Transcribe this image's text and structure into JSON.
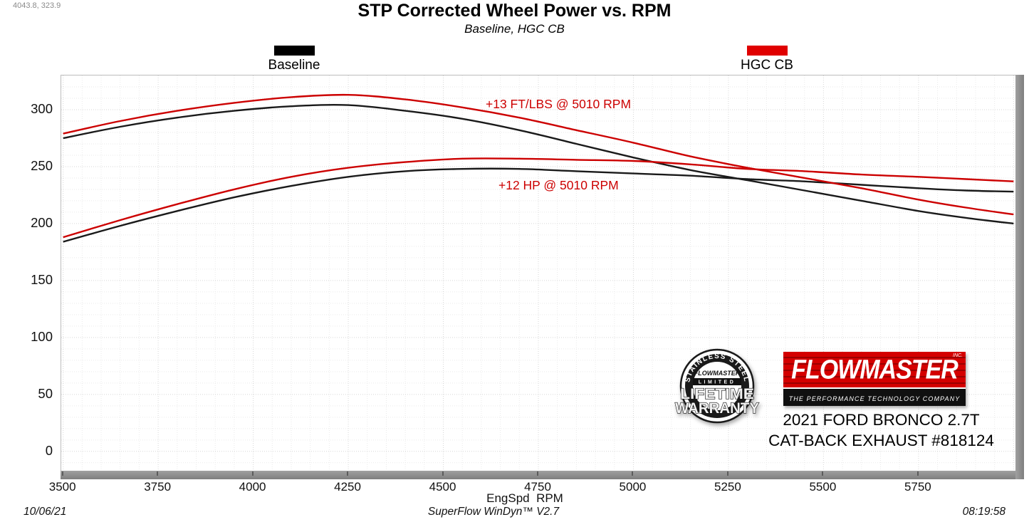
{
  "cursor_readout": "4043.8, 323.9",
  "title": "STP Corrected Wheel Power vs. RPM",
  "subtitle": "Baseline, HGC CB",
  "legend": [
    {
      "label": "Baseline",
      "color": "#000000"
    },
    {
      "label": "HGC CB",
      "color": "#e00000"
    }
  ],
  "branding": {
    "badge": {
      "arc_text": "STAINLESS STEEL",
      "brand": "FLOWMASTER",
      "limited": "LIMITED",
      "line1": "LIFETIME",
      "line2": "WARRANTY"
    },
    "logo": {
      "brand": "FLOWMASTER",
      "inc": "INC.",
      "tagline": "THE PERFORMANCE TECHNOLOGY COMPANY"
    },
    "vehicle_line1": "2021 FORD BRONCO 2.7T",
    "vehicle_line2": "CAT-BACK EXHAUST #818124"
  },
  "footer": {
    "date": "10/06/21",
    "app": "SuperFlow WinDyn™ V2.7",
    "time": "08:19:58"
  },
  "chart_data": {
    "type": "line",
    "title": "STP Corrected Wheel Power vs. RPM",
    "subtitle": "Baseline, HGC CB",
    "xlabel": "EngSpd  RPM",
    "ylabel": "",
    "xlim": [
      3495,
      6005
    ],
    "ylim": [
      -17,
      330
    ],
    "x_ticks": [
      3500,
      3750,
      4000,
      4250,
      4500,
      4750,
      5000,
      5250,
      5500,
      5750
    ],
    "y_ticks": [
      0,
      50,
      100,
      150,
      200,
      250,
      300
    ],
    "grid": {
      "minor_x_step": 50,
      "minor_y_step": 10,
      "style": "dotted"
    },
    "legend_position": "top",
    "x": [
      3500,
      3650,
      3800,
      3950,
      4100,
      4250,
      4400,
      4550,
      4700,
      4850,
      5000,
      5150,
      5300,
      5450,
      5600,
      5750,
      5875,
      6000
    ],
    "series": [
      {
        "name": "Baseline torque (ft-lbs)",
        "color": "#1a1a1a",
        "values": [
          275,
          285,
          293,
          299,
          303,
          304,
          299,
          292,
          282,
          270,
          258,
          247,
          238,
          229,
          220,
          211,
          205,
          200
        ]
      },
      {
        "name": "Baseline power (hp)",
        "color": "#1a1a1a",
        "values": [
          184,
          198,
          211,
          223,
          233,
          241,
          246,
          248,
          248,
          246,
          244,
          242,
          239,
          237,
          234,
          231,
          229,
          228
        ]
      },
      {
        "name": "HGC CB torque (ft-lbs)",
        "color": "#cc0000",
        "values": [
          279,
          290,
          299,
          306,
          311,
          313,
          309,
          302,
          293,
          282,
          271,
          259,
          249,
          240,
          231,
          221,
          214,
          208
        ]
      },
      {
        "name": "HGC CB power (hp)",
        "color": "#cc0000",
        "values": [
          188,
          203,
          217,
          230,
          241,
          249,
          254,
          257,
          257,
          256,
          255,
          252,
          248,
          246,
          243,
          241,
          239,
          237
        ]
      }
    ],
    "annotations": [
      {
        "text": "+13 FT/LBS @ 5010 RPM",
        "color": "#cc0000",
        "near_rpm": 5010
      },
      {
        "text": "+12 HP @ 5010 RPM",
        "color": "#cc0000",
        "near_rpm": 5010
      }
    ]
  }
}
